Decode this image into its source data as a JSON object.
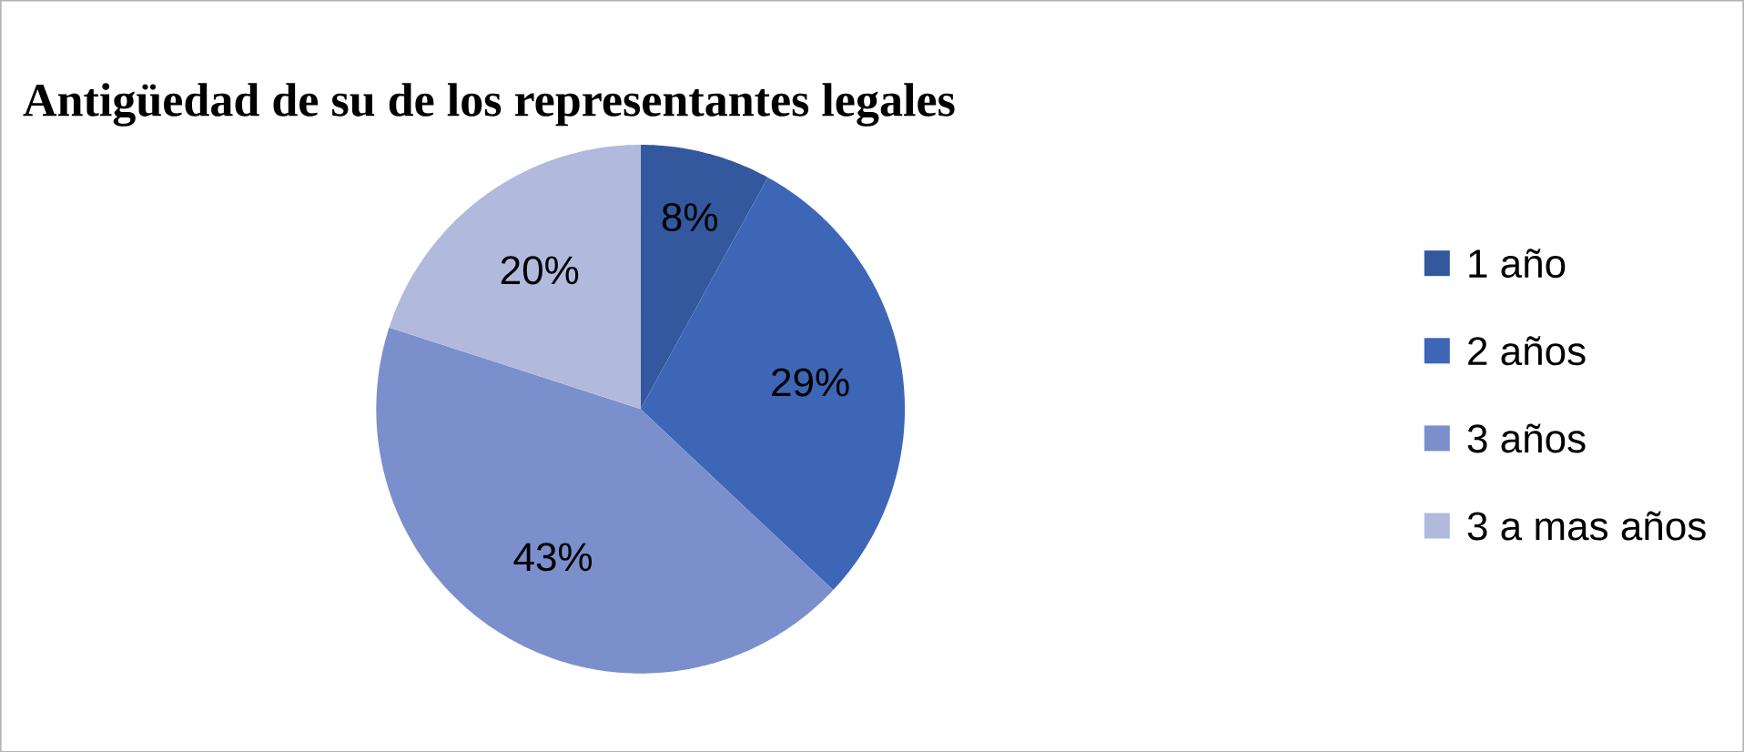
{
  "chart_data": {
    "type": "pie",
    "title": "Antigüedad de su de los representantes legales",
    "categories": [
      "1 año",
      "2 años",
      "3 años",
      "3 a mas años"
    ],
    "values": [
      8,
      29,
      43,
      20
    ],
    "value_labels": [
      "8%",
      "29%",
      "43%",
      "20%"
    ],
    "colors": [
      "#34589e",
      "#3e66b6",
      "#7a8fcc",
      "#b1badd"
    ],
    "legend": "right"
  }
}
